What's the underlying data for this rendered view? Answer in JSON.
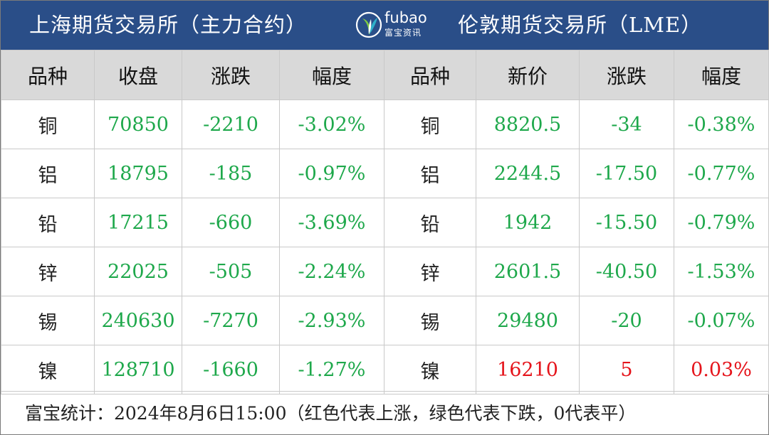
{
  "banner": {
    "left_title": "上海期货交易所（主力合约）",
    "right_title": "伦敦期货交易所（LME）",
    "logo": {
      "brand": "fubao",
      "sub": "富宝资讯",
      "icon": "leaf-logo-icon"
    }
  },
  "table": {
    "headers": [
      "品种",
      "收盘",
      "涨跌",
      "幅度",
      "品种",
      "新价",
      "涨跌",
      "幅度"
    ],
    "rows": [
      {
        "shfe_name": "铜",
        "shfe_close": "70850",
        "shfe_change": "-2210",
        "shfe_pct": "-3.02%",
        "lme_name": "铜",
        "lme_price": "8820.5",
        "lme_change": "-34",
        "lme_pct": "-0.38%"
      },
      {
        "shfe_name": "铝",
        "shfe_close": "18795",
        "shfe_change": "-185",
        "shfe_pct": "-0.97%",
        "lme_name": "铝",
        "lme_price": "2244.5",
        "lme_change": "-17.50",
        "lme_pct": "-0.77%"
      },
      {
        "shfe_name": "铅",
        "shfe_close": "17215",
        "shfe_change": "-660",
        "shfe_pct": "-3.69%",
        "lme_name": "铅",
        "lme_price": "1942",
        "lme_change": "-15.50",
        "lme_pct": "-0.79%"
      },
      {
        "shfe_name": "锌",
        "shfe_close": "22025",
        "shfe_change": "-505",
        "shfe_pct": "-2.24%",
        "lme_name": "锌",
        "lme_price": "2601.5",
        "lme_change": "-40.50",
        "lme_pct": "-1.53%"
      },
      {
        "shfe_name": "锡",
        "shfe_close": "240630",
        "shfe_change": "-7270",
        "shfe_pct": "-2.93%",
        "lme_name": "锡",
        "lme_price": "29480",
        "lme_change": "-20",
        "lme_pct": "-0.07%"
      },
      {
        "shfe_name": "镍",
        "shfe_close": "128710",
        "shfe_change": "-1660",
        "shfe_pct": "-1.27%",
        "lme_name": "镍",
        "lme_price": "16210",
        "lme_change": "5",
        "lme_pct": "0.03%"
      }
    ]
  },
  "colors": {
    "banner": "#2a4e88",
    "header_bg": "#d9d9d9",
    "down": "#1ea84b",
    "up": "#e5141b"
  },
  "footer": {
    "note": "富宝统计：2024年8月6日15:00（红色代表上涨，绿色代表下跌，0代表平）"
  }
}
